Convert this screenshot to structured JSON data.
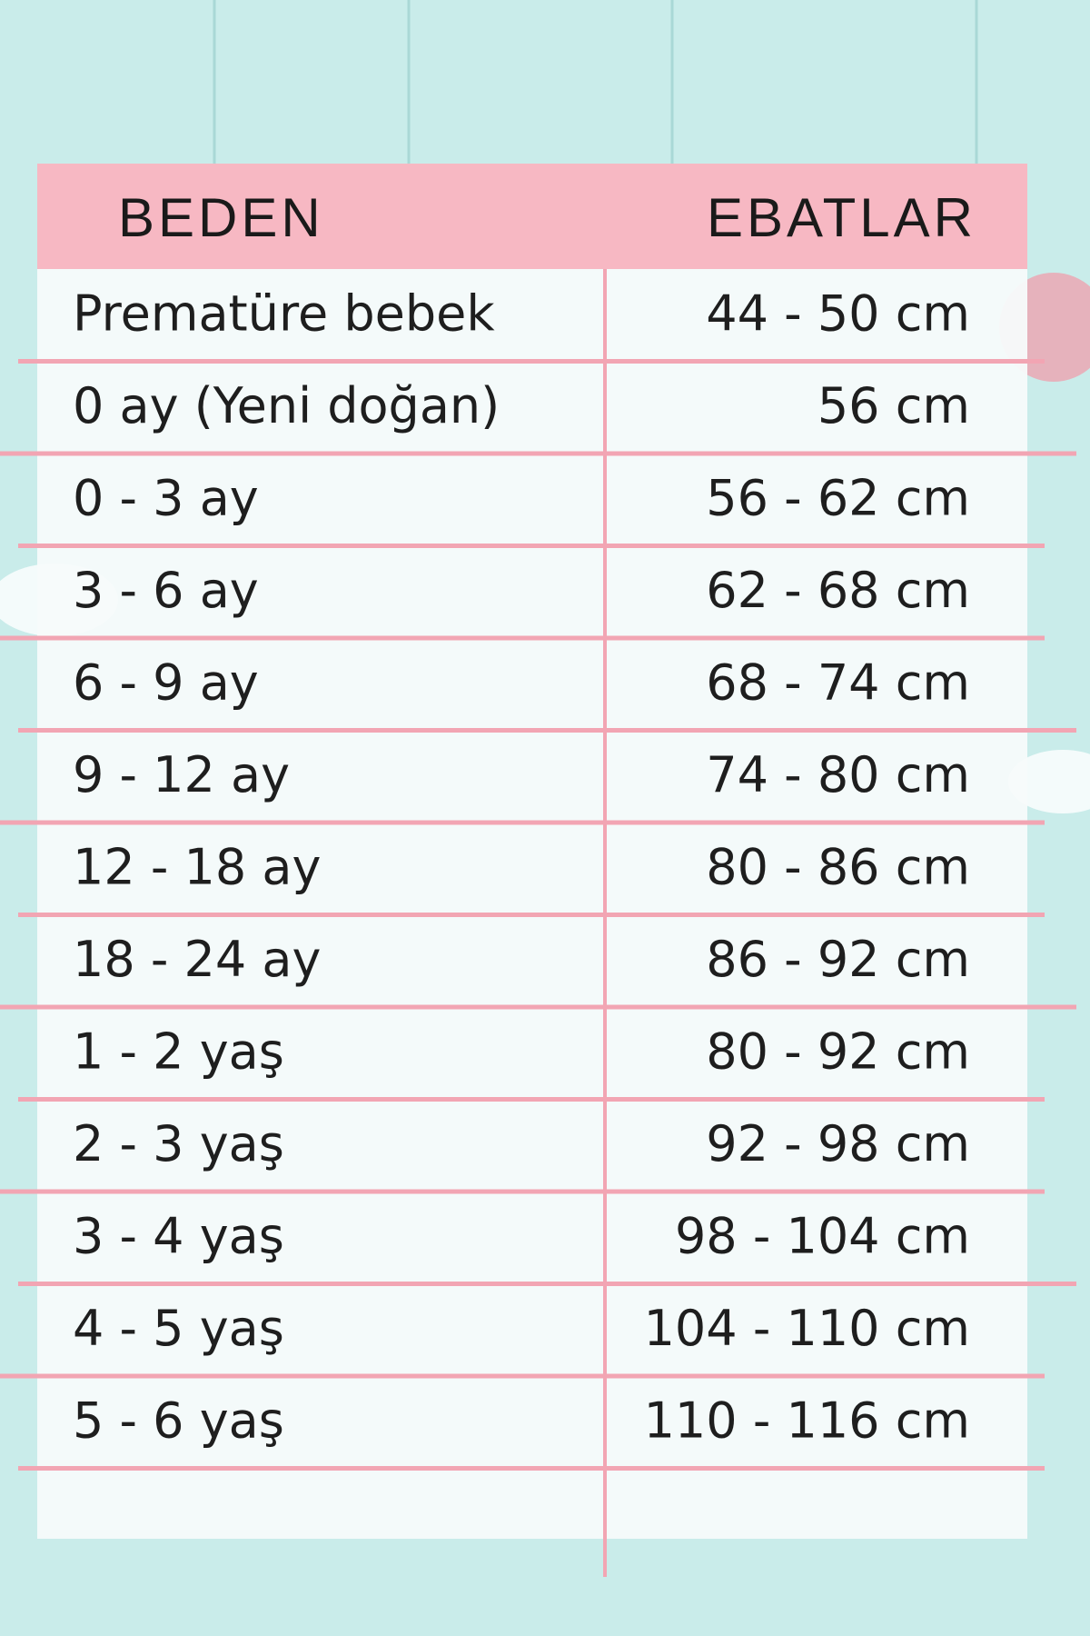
{
  "header": {
    "beden": "BEDEN",
    "ebatlar": "EBATLAR"
  },
  "rows": [
    [
      "Prematüre bebek",
      "44 - 50 cm"
    ],
    [
      "0 ay (Yeni doğan)",
      "56 cm"
    ],
    [
      "0 - 3 ay",
      "56 - 62 cm"
    ],
    [
      "3 - 6 ay",
      "62 - 68 cm"
    ],
    [
      "6 - 9 ay",
      "68 - 74 cm"
    ],
    [
      "9 - 12 ay",
      "74 - 80 cm"
    ],
    [
      "12 - 18 ay",
      "80 - 86 cm"
    ],
    [
      "18 - 24 ay",
      "86 - 92 cm"
    ],
    [
      "1 - 2 yaş",
      "80 - 92 cm"
    ],
    [
      "2 - 3 yaş",
      "92 - 98 cm"
    ],
    [
      "3 - 4 yaş",
      "98 - 104 cm"
    ],
    [
      "4 - 5 yaş",
      "104 - 110 cm"
    ],
    [
      "5 - 6 yaş",
      "110 - 116 cm"
    ]
  ]
}
